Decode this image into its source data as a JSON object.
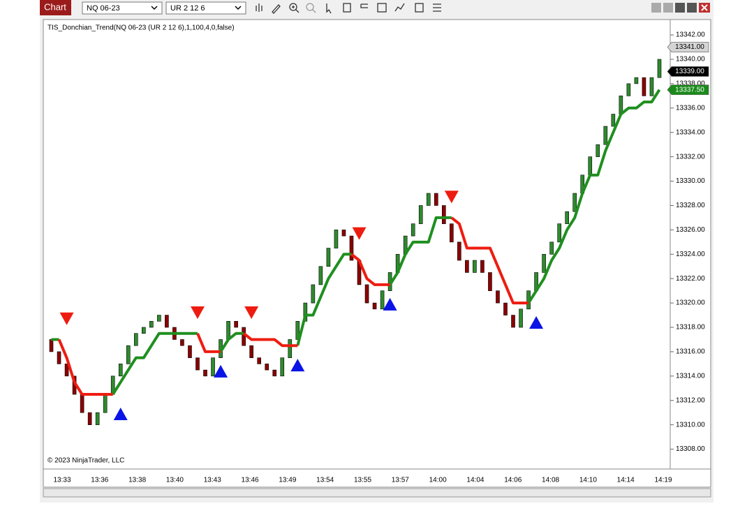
{
  "toolbar": {
    "title": "Chart",
    "instrument": "NQ 06-23",
    "bar_type": "UR 2 12 6"
  },
  "chart_data": {
    "type": "candlestick",
    "indicator_label": "TIS_Donchian_Trend(NQ 06-23 (UR 2 12 6),1,100,4,0,false)",
    "copyright": "© 2023 NinjaTrader, LLC",
    "x_labels": [
      "13:33",
      "13:36",
      "13:38",
      "13:40",
      "13:43",
      "13:46",
      "13:49",
      "13:54",
      "13:55",
      "13:57",
      "14:00",
      "14:04",
      "14:06",
      "14:08",
      "14:10",
      "14:14",
      "14:19"
    ],
    "up_color": "#2e8b2e",
    "down_color": "#8b0000",
    "open": [
      13317,
      13316,
      13315,
      13314,
      13312.5,
      13311,
      13310,
      13311,
      13312.5,
      13314,
      13315,
      13316.5,
      13317.5,
      13318,
      13318.5,
      13319,
      13318,
      13317,
      13316.5,
      13315.5,
      13314.5,
      13314,
      13315.5,
      13317,
      13318.5,
      13318,
      13316.5,
      13315.5,
      13315,
      13314.5,
      13314,
      13315.5,
      13317,
      13318.5,
      13320,
      13321.5,
      13323,
      13324.5,
      13326,
      13325.5,
      13323.5,
      13321.5,
      13320,
      13319.5,
      13321,
      13322.5,
      13324,
      13325.5,
      13326.5,
      13328,
      13329,
      13328,
      13326.5,
      13325,
      13323.5,
      13322.5,
      13323.5,
      13322.5,
      13321,
      13320,
      13319,
      13318,
      13319.5,
      13321,
      13322.5,
      13324,
      13325,
      13326.5,
      13327.5,
      13329,
      13330.5,
      13332,
      13333,
      13334.5,
      13335.5,
      13337,
      13338,
      13338.5,
      13337,
      13338.5
    ],
    "close": [
      13316,
      13315,
      13314,
      13312.5,
      13311,
      13310,
      13311,
      13312.5,
      13314,
      13315,
      13316.5,
      13317.5,
      13318,
      13318.5,
      13319,
      13318,
      13317,
      13316.5,
      13315.5,
      13314.5,
      13314,
      13315.5,
      13317,
      13318.5,
      13318,
      13316.5,
      13315.5,
      13315,
      13314.5,
      13314,
      13315.5,
      13317,
      13318.5,
      13320,
      13321.5,
      13323,
      13324.5,
      13326,
      13325.5,
      13323.5,
      13321.5,
      13320,
      13319.5,
      13321,
      13322.5,
      13324,
      13325.5,
      13326.5,
      13328,
      13329,
      13328,
      13326.5,
      13325,
      13323.5,
      13322.5,
      13323.5,
      13322.5,
      13321,
      13320,
      13319,
      13318,
      13319.5,
      13321,
      13322.5,
      13324,
      13325,
      13326.5,
      13327.5,
      13329,
      13330.5,
      13332,
      13333,
      13334.5,
      13335.5,
      13337,
      13338,
      13338.5,
      13337,
      13338.5,
      13340
    ],
    "trend": [
      {
        "color": "#1f8f1f",
        "values": [
          13317,
          13317,
          null,
          null,
          null,
          null,
          null,
          null,
          13312.5,
          13313.5,
          13314.5,
          13315.5,
          13315.5,
          13316.5,
          13317.5,
          13317.5,
          13317.5,
          13317.5,
          13317.5,
          13317.5,
          null,
          null,
          13316,
          13317,
          13317.5,
          13317.5,
          null,
          null,
          null,
          null,
          null,
          null,
          13316.5,
          13319,
          13319,
          13320.5,
          13322,
          13323,
          13324,
          13324,
          null,
          null,
          null,
          null,
          13321.5,
          13322.5,
          13324,
          13325,
          13325,
          13325,
          13327,
          13327,
          13327,
          null,
          null,
          null,
          null,
          null,
          null,
          null,
          null,
          null,
          13320,
          13321,
          13322,
          13323.5,
          13324.5,
          13326,
          13327,
          13329,
          13330.5,
          13330.5,
          13332.5,
          13334,
          13335.5,
          13336,
          13336,
          13336.5,
          13336.5,
          13337.5
        ]
      },
      {
        "color": "#ee1c10",
        "values": [
          null,
          13317,
          13315.5,
          13313.5,
          13312.5,
          13312.5,
          13312.5,
          13312.5,
          13312.5,
          null,
          null,
          null,
          null,
          null,
          null,
          null,
          null,
          null,
          null,
          13317.5,
          13316,
          13316,
          13316,
          null,
          null,
          13317.5,
          13317,
          13317,
          13317,
          13317,
          13316.5,
          13316.5,
          13316.5,
          null,
          null,
          null,
          null,
          null,
          null,
          13324,
          13323.5,
          13322,
          13321.5,
          13321.5,
          13321.5,
          null,
          null,
          null,
          null,
          null,
          null,
          null,
          13327,
          13326.5,
          13324.5,
          13324.5,
          13324.5,
          13324.5,
          13323,
          13321.5,
          13320,
          13320,
          13320,
          null,
          null,
          null,
          null,
          null,
          null,
          null,
          null,
          null,
          null,
          null,
          null,
          null,
          null,
          null,
          null,
          null
        ]
      }
    ],
    "up_signals": {
      "color": "#0a14e6",
      "bars": [
        9,
        22,
        32,
        44,
        63
      ],
      "values": [
        13310.9,
        13314.4,
        13314.9,
        13319.9,
        13318.4
      ]
    },
    "down_signals": {
      "color": "#ee1c10",
      "bars": [
        2,
        19,
        26,
        40,
        52
      ],
      "values": [
        13318.7,
        13319.2,
        13319.2,
        13325.7,
        13328.7
      ]
    },
    "ylim": [
      13306.6,
      13343.15
    ],
    "yticks": [
      {
        "value": 13308,
        "label": "13308.00"
      },
      {
        "value": 13310,
        "label": "13310.00"
      },
      {
        "value": 13312,
        "label": "13312.00"
      },
      {
        "value": 13314,
        "label": "13314.00"
      },
      {
        "value": 13316,
        "label": "13316.00"
      },
      {
        "value": 13318,
        "label": "13318.00"
      },
      {
        "value": 13320,
        "label": "13320.00"
      },
      {
        "value": 13322,
        "label": "13322.00"
      },
      {
        "value": 13324,
        "label": "13324.00"
      },
      {
        "value": 13326,
        "label": "13326.00"
      },
      {
        "value": 13328,
        "label": "13328.00"
      },
      {
        "value": 13330,
        "label": "13330.00"
      },
      {
        "value": 13332,
        "label": "13332.00"
      },
      {
        "value": 13334,
        "label": "13334.00"
      },
      {
        "value": 13336,
        "label": "13336.00"
      },
      {
        "value": 13338,
        "label": "13338.00"
      },
      {
        "value": 13340,
        "label": "13340.00"
      },
      {
        "value": 13342,
        "label": "13342.00"
      }
    ],
    "price_markers": [
      {
        "value": 13341,
        "label": "13341.00",
        "color": "#d4d4d4",
        "text_color": "#000000"
      },
      {
        "value": 13339,
        "label": "13339.00",
        "color": "#000000",
        "text_color": "#ffffff"
      },
      {
        "value": 13337.5,
        "label": "13337.50",
        "color": "#1a8a1a",
        "text_color": "#ffffff"
      }
    ]
  }
}
